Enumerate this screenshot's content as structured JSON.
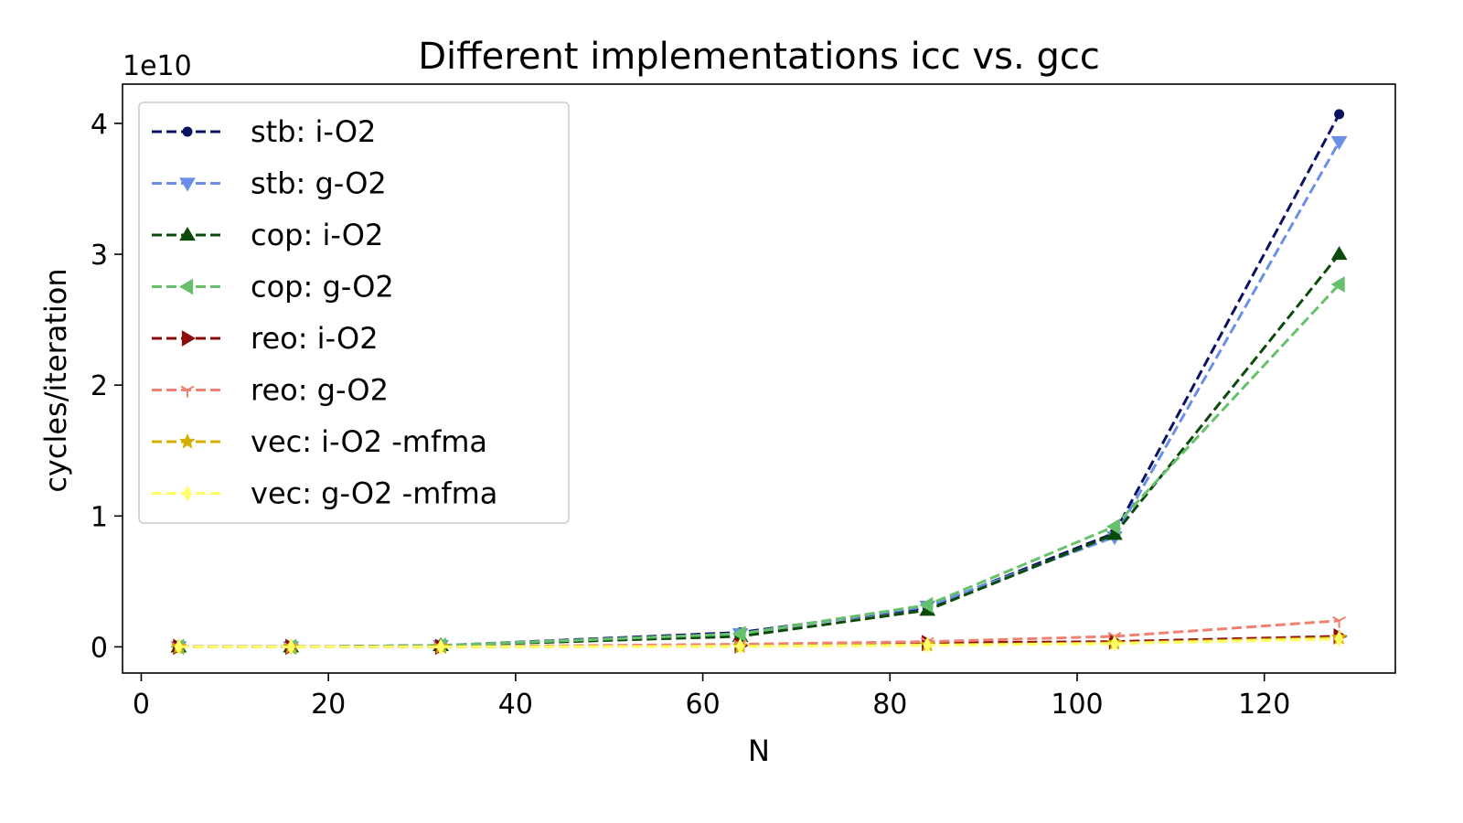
{
  "chart_data": {
    "type": "line",
    "title": "Different implementations icc vs. gcc",
    "xlabel": "N",
    "ylabel": "cycles/iteration",
    "y_offset_label": "1e10",
    "xlim": [
      -2,
      134
    ],
    "ylim": [
      -0.2,
      4.3
    ],
    "y_scale_note": "values in units of 1e10",
    "xticks": [
      0,
      20,
      40,
      60,
      80,
      100,
      120
    ],
    "xtick_labels": [
      "0",
      "20",
      "40",
      "60",
      "80",
      "100",
      "120"
    ],
    "yticks": [
      0,
      1,
      2,
      3,
      4
    ],
    "ytick_labels": [
      "0",
      "1",
      "2",
      "3",
      "4"
    ],
    "grid": false,
    "legend_position": "top-left",
    "x": [
      4,
      16,
      32,
      64,
      84,
      104,
      128
    ],
    "series": [
      {
        "name": "stb:  i-O2",
        "color": "#0b1264",
        "marker": "circle",
        "values": [
          0.0,
          0.0,
          0.01,
          0.11,
          0.3,
          0.87,
          4.07
        ]
      },
      {
        "name": "stb:  g-O2",
        "color": "#6a8fe8",
        "marker": "triangle-down",
        "values": [
          0.0,
          0.0,
          0.01,
          0.1,
          0.31,
          0.84,
          3.86
        ]
      },
      {
        "name": "cop:  i-O2",
        "color": "#0a4a0a",
        "marker": "triangle-up",
        "values": [
          0.0,
          0.0,
          0.01,
          0.08,
          0.28,
          0.86,
          3.0
        ]
      },
      {
        "name": "cop:  g-O2",
        "color": "#66c06c",
        "marker": "triangle-left",
        "values": [
          0.0,
          0.0,
          0.01,
          0.1,
          0.32,
          0.92,
          2.77
        ]
      },
      {
        "name": "reo:  i-O2",
        "color": "#8b0a0a",
        "marker": "triangle-right",
        "values": [
          0.0,
          0.0,
          0.0,
          0.01,
          0.03,
          0.04,
          0.08
        ]
      },
      {
        "name": "reo:  g-O2",
        "color": "#f08070",
        "marker": "tri",
        "values": [
          0.0,
          0.0,
          0.0,
          0.02,
          0.04,
          0.08,
          0.2
        ]
      },
      {
        "name": "vec:  i-O2 -mfma",
        "color": "#d4b000",
        "marker": "star",
        "values": [
          0.0,
          0.0,
          0.0,
          0.005,
          0.015,
          0.03,
          0.07
        ]
      },
      {
        "name": "vec:  g-O2 -mfma",
        "color": "#ffff66",
        "marker": "diamond-thin",
        "values": [
          0.0,
          0.0,
          0.0,
          0.004,
          0.012,
          0.025,
          0.06
        ]
      }
    ]
  }
}
